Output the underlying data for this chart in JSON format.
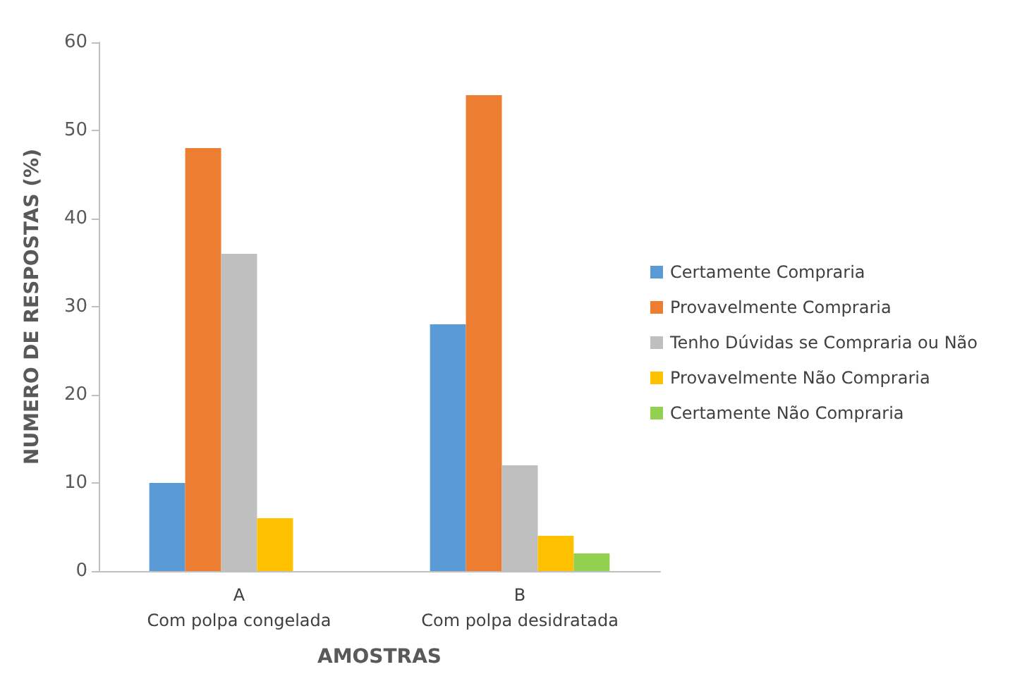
{
  "chart_data": {
    "type": "bar",
    "xlabel": "AMOSTRAS",
    "ylabel": "NUMERO DE RESPOSTAS (%)",
    "categories": [
      "A\nCom polpa congelada",
      "B\nCom polpa desidratada"
    ],
    "series": [
      {
        "name": "Certamente Compraria",
        "color": "#5b9bd5",
        "values": [
          10,
          28
        ]
      },
      {
        "name": "Provavelmente Compraria",
        "color": "#ed7d31",
        "values": [
          48,
          54
        ]
      },
      {
        "name": "Tenho Dúvidas se Compraria ou Não",
        "color": "#bfbfbf",
        "values": [
          36,
          12
        ]
      },
      {
        "name": "Provavelmente Não Compraria",
        "color": "#ffc000",
        "values": [
          6,
          4
        ]
      },
      {
        "name": "Certamente Não Compraria",
        "color": "#92d050",
        "values": [
          null,
          2
        ]
      }
    ],
    "ylim": [
      0,
      60
    ],
    "yticks": [
      0,
      10,
      20,
      30,
      40,
      50,
      60
    ],
    "grid": false,
    "legend": "right"
  }
}
